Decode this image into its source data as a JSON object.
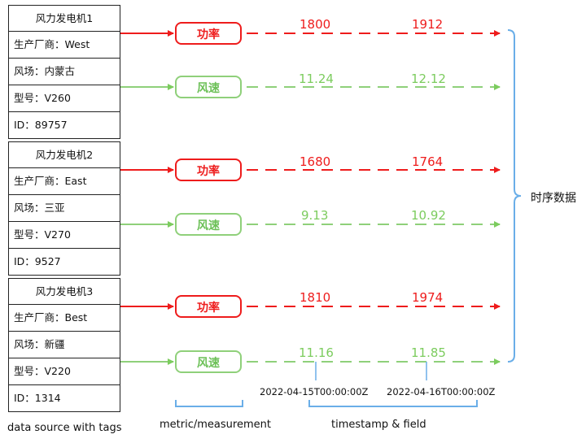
{
  "turbines": [
    {
      "title": "风力发电机1",
      "manufacturer": "生产厂商：West",
      "farm": "风场：内蒙古",
      "model": "型号：V260",
      "id": "ID：89757",
      "power": {
        "label": "功率",
        "values": [
          "1800",
          "1912"
        ]
      },
      "wind": {
        "label": "风速",
        "values": [
          "11.24",
          "12.12"
        ]
      }
    },
    {
      "title": "风力发电机2",
      "manufacturer": "生产厂商：East",
      "farm": "风场：三亚",
      "model": "型号：V270",
      "id": "ID：9527",
      "power": {
        "label": "功率",
        "values": [
          "1680",
          "1764"
        ]
      },
      "wind": {
        "label": "风速",
        "values": [
          "9.13",
          "10.92"
        ]
      }
    },
    {
      "title": "风力发电机3",
      "manufacturer": "生产厂商：Best",
      "farm": "风场：新疆",
      "model": "型号：V220",
      "id": "ID：1314",
      "power": {
        "label": "功率",
        "values": [
          "1810",
          "1974"
        ]
      },
      "wind": {
        "label": "风速",
        "values": [
          "11.16",
          "11.85"
        ]
      }
    }
  ],
  "timestamps": [
    "2022-04-15T00:00:00Z",
    "2022-04-16T00:00:00Z"
  ],
  "timeseries_label": "时序数据",
  "bottom_labels": {
    "source": "data source with tags",
    "metric": "metric/measurement",
    "timestamp": "timestamp & field"
  },
  "colors": {
    "power": "#ee1c1c",
    "wind": "#7ccc5e",
    "bracket": "#6aaee8",
    "outline": "#222222"
  }
}
